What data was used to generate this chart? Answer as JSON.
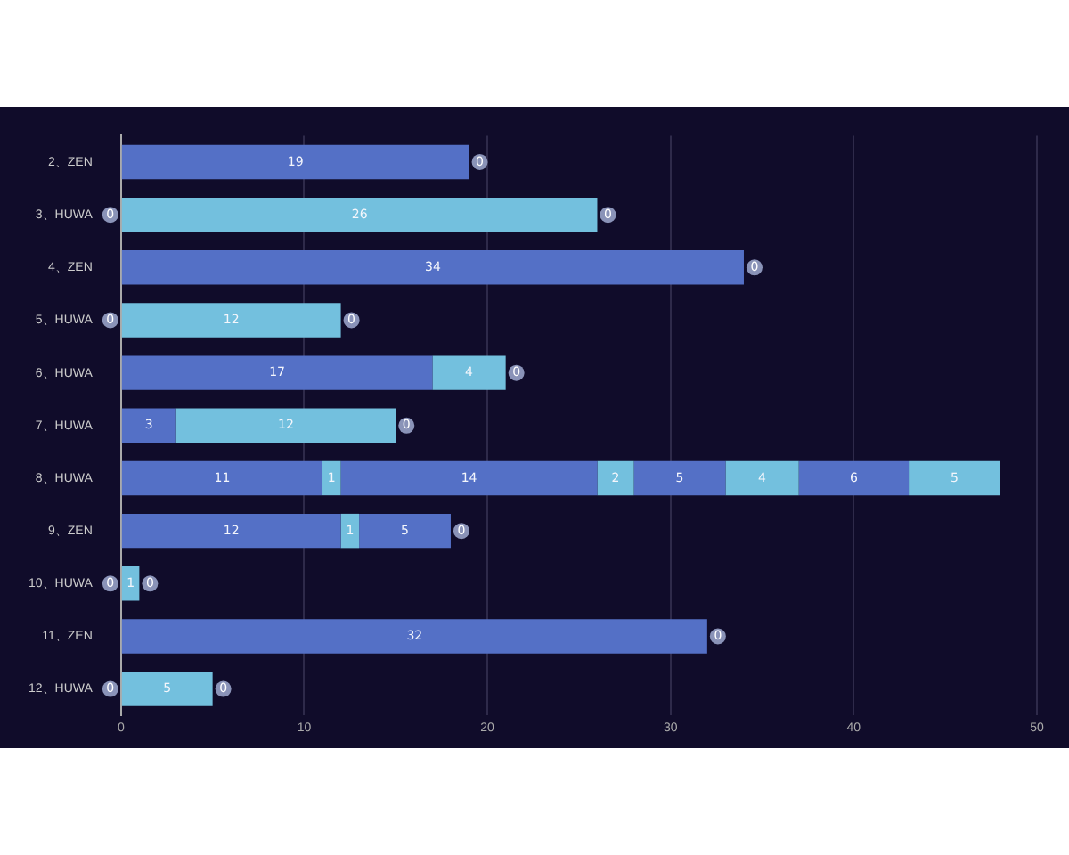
{
  "chart_data": {
    "type": "bar",
    "orientation": "horizontal",
    "stacked": true,
    "categories": [
      "2、ZEN",
      "3、HUWA",
      "4、ZEN",
      "5、HUWA",
      "6、HUWA",
      "7、HUWA",
      "8、HUWA",
      "9、ZEN",
      "10、HUWA",
      "11、ZEN",
      "12、HUWA"
    ],
    "series": [
      {
        "color": "#5470c6",
        "values": [
          19,
          null,
          34,
          null,
          17,
          3,
          11,
          12,
          null,
          32,
          null
        ]
      },
      {
        "color": "#73c0de",
        "values": [
          null,
          26,
          null,
          12,
          4,
          12,
          1,
          1,
          1,
          null,
          5
        ]
      },
      {
        "color": "#5470c6",
        "values": [
          null,
          null,
          null,
          null,
          null,
          null,
          14,
          5,
          null,
          null,
          null
        ]
      },
      {
        "color": "#73c0de",
        "values": [
          null,
          null,
          null,
          null,
          null,
          null,
          2,
          null,
          null,
          null,
          null
        ]
      },
      {
        "color": "#5470c6",
        "values": [
          null,
          null,
          null,
          null,
          null,
          null,
          5,
          null,
          null,
          null,
          null
        ]
      },
      {
        "color": "#73c0de",
        "values": [
          null,
          null,
          null,
          null,
          null,
          null,
          4,
          null,
          null,
          null,
          null
        ]
      },
      {
        "color": "#5470c6",
        "values": [
          null,
          null,
          null,
          null,
          null,
          null,
          6,
          null,
          null,
          null,
          null
        ]
      },
      {
        "color": "#73c0de",
        "values": [
          null,
          null,
          null,
          null,
          null,
          null,
          5,
          null,
          null,
          null,
          null
        ]
      }
    ],
    "annotations": [
      {
        "text": "0",
        "x": 19,
        "y": "2、ZEN"
      },
      {
        "text": "0",
        "x": 0,
        "y": "3、HUWA"
      },
      {
        "text": "0",
        "x": 26,
        "y": "3、HUWA"
      },
      {
        "text": "0",
        "x": 34,
        "y": "4、ZEN"
      },
      {
        "text": "0",
        "x": 0,
        "y": "5、HUWA"
      },
      {
        "text": "0",
        "x": 12,
        "y": "5、HUWA"
      },
      {
        "text": "0",
        "x": 21,
        "y": "6、HUWA"
      },
      {
        "text": "0",
        "x": 15,
        "y": "7、HUWA"
      },
      {
        "text": "0",
        "x": 18,
        "y": "9、ZEN"
      },
      {
        "text": "0",
        "x": 0,
        "y": "10、HUWA"
      },
      {
        "text": "0",
        "x": 1,
        "y": "10、HUWA"
      },
      {
        "text": "0",
        "x": 32,
        "y": "11、ZEN"
      },
      {
        "text": "0",
        "x": 0,
        "y": "12、HUWA"
      },
      {
        "text": "0",
        "x": 5,
        "y": "12、HUWA"
      }
    ],
    "xlim": [
      0,
      50
    ],
    "xticks": [
      0,
      10,
      20,
      30,
      40,
      50
    ],
    "grid": "x",
    "legend": false,
    "data_labels": true
  }
}
